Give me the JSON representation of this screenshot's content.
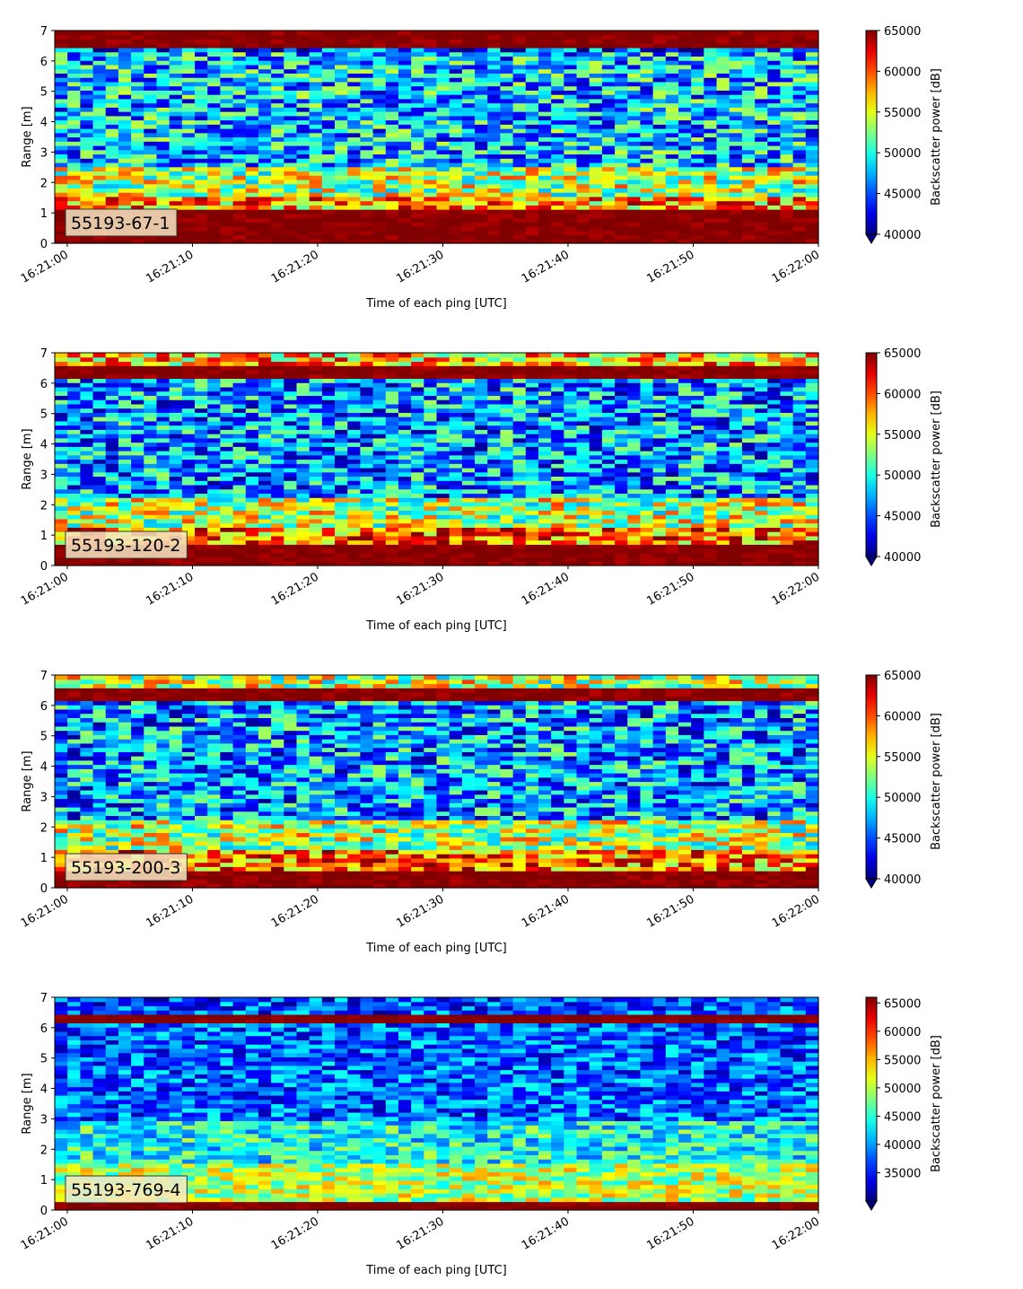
{
  "figure": {
    "xlabel": "Time of each ping [UTC]",
    "ylabel": "Range [m]",
    "colorbar_label": "Backscatter power [dB]",
    "colormap": "jet",
    "x_tick_labels": [
      "16:21:00",
      "16:21:10",
      "16:21:20",
      "16:21:30",
      "16:21:40",
      "16:21:50",
      "16:22:00"
    ]
  },
  "chart_data": [
    {
      "type": "heatmap",
      "label": "55193-67-1",
      "xlabel": "Time of each ping [UTC]",
      "ylabel": "Range [m]",
      "x_range": [
        "16:20:59",
        "16:22:00"
      ],
      "x_ticks": [
        "16:21:00",
        "16:21:10",
        "16:21:20",
        "16:21:30",
        "16:21:40",
        "16:21:50",
        "16:22:00"
      ],
      "ylim": [
        0,
        7
      ],
      "y_ticks": [
        0,
        1,
        2,
        3,
        4,
        5,
        6,
        7
      ],
      "colorbar_label": "Backscatter power [dB]",
      "clim": [
        40000,
        65000
      ],
      "colorbar_ticks": [
        40000,
        45000,
        50000,
        55000,
        60000,
        65000
      ],
      "colorbar_extend": "min",
      "bands": [
        {
          "from": 0,
          "to": 1.1,
          "value": 65000
        },
        {
          "from": 1.1,
          "to": 1.5,
          "value": 58000
        },
        {
          "from": 1.5,
          "to": 2.5,
          "value": 54000
        },
        {
          "from": 2.5,
          "to": 6.3,
          "value": 48000
        },
        {
          "from": 6.3,
          "to": 6.5,
          "value": 44000
        },
        {
          "from": 6.5,
          "to": 7,
          "value": 65000
        }
      ]
    },
    {
      "type": "heatmap",
      "label": "55193-120-2",
      "xlabel": "Time of each ping [UTC]",
      "ylabel": "Range [m]",
      "x_range": [
        "16:20:59",
        "16:22:00"
      ],
      "x_ticks": [
        "16:21:00",
        "16:21:10",
        "16:21:20",
        "16:21:30",
        "16:21:40",
        "16:21:50",
        "16:22:00"
      ],
      "ylim": [
        0,
        7
      ],
      "y_ticks": [
        0,
        1,
        2,
        3,
        4,
        5,
        6,
        7
      ],
      "colorbar_label": "Backscatter power [dB]",
      "clim": [
        40000,
        65000
      ],
      "colorbar_ticks": [
        40000,
        45000,
        50000,
        55000,
        60000,
        65000
      ],
      "colorbar_extend": "min",
      "bands": [
        {
          "from": 0,
          "to": 0.7,
          "value": 65000
        },
        {
          "from": 0.7,
          "to": 1.3,
          "value": 59000
        },
        {
          "from": 1.3,
          "to": 2.3,
          "value": 54000
        },
        {
          "from": 2.3,
          "to": 6.2,
          "value": 47000
        },
        {
          "from": 6.2,
          "to": 6.6,
          "value": 65000
        },
        {
          "from": 6.6,
          "to": 7,
          "value": 57000
        }
      ]
    },
    {
      "type": "heatmap",
      "label": "55193-200-3",
      "xlabel": "Time of each ping [UTC]",
      "ylabel": "Range [m]",
      "x_range": [
        "16:20:59",
        "16:22:00"
      ],
      "x_ticks": [
        "16:21:00",
        "16:21:10",
        "16:21:20",
        "16:21:30",
        "16:21:40",
        "16:21:50",
        "16:22:00"
      ],
      "ylim": [
        0,
        7
      ],
      "y_ticks": [
        0,
        1,
        2,
        3,
        4,
        5,
        6,
        7
      ],
      "colorbar_label": "Backscatter power [dB]",
      "clim": [
        40000,
        65000
      ],
      "colorbar_ticks": [
        40000,
        45000,
        50000,
        55000,
        60000,
        65000
      ],
      "colorbar_extend": "min",
      "bands": [
        {
          "from": 0,
          "to": 0.6,
          "value": 65000
        },
        {
          "from": 0.6,
          "to": 1.2,
          "value": 59000
        },
        {
          "from": 1.2,
          "to": 2.3,
          "value": 54000
        },
        {
          "from": 2.3,
          "to": 6.2,
          "value": 47000
        },
        {
          "from": 6.2,
          "to": 6.6,
          "value": 65000
        },
        {
          "from": 6.6,
          "to": 7,
          "value": 54000
        }
      ]
    },
    {
      "type": "heatmap",
      "label": "55193-769-4",
      "xlabel": "Time of each ping [UTC]",
      "ylabel": "Range [m]",
      "x_range": [
        "16:20:59",
        "16:22:00"
      ],
      "x_ticks": [
        "16:21:00",
        "16:21:10",
        "16:21:20",
        "16:21:30",
        "16:21:40",
        "16:21:50",
        "16:22:00"
      ],
      "ylim": [
        0,
        7
      ],
      "y_ticks": [
        0,
        1,
        2,
        3,
        4,
        5,
        6,
        7
      ],
      "colorbar_label": "Backscatter power [dB]",
      "clim": [
        30000,
        66000
      ],
      "colorbar_ticks": [
        35000,
        40000,
        45000,
        50000,
        55000,
        60000,
        65000
      ],
      "colorbar_extend": "min",
      "bands": [
        {
          "from": 0,
          "to": 0.3,
          "value": 66000
        },
        {
          "from": 0.3,
          "to": 1.5,
          "value": 50000
        },
        {
          "from": 1.5,
          "to": 3,
          "value": 44000
        },
        {
          "from": 3,
          "to": 6.2,
          "value": 38000
        },
        {
          "from": 6.2,
          "to": 6.5,
          "value": 66000
        },
        {
          "from": 6.5,
          "to": 7,
          "value": 37000
        }
      ]
    }
  ]
}
